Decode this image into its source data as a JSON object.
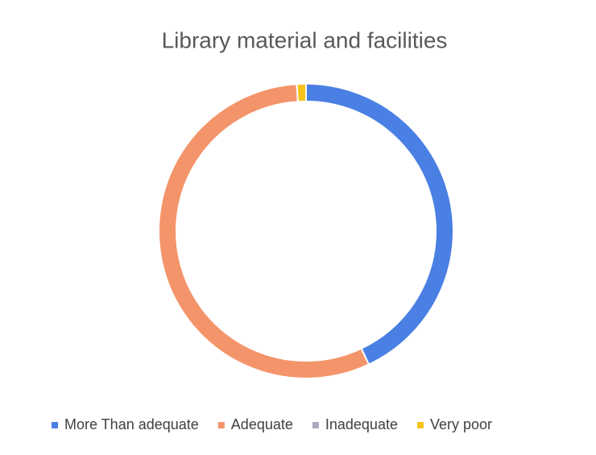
{
  "chart_data": {
    "type": "donut",
    "title": "Library material and facilities",
    "categories": [
      "More Than adequate",
      "Adequate",
      "Inadequate",
      "Very poor"
    ],
    "values": [
      43,
      56,
      0,
      1
    ],
    "colors": [
      "#4a7fe3",
      "#f4946a",
      "#a9a9bd",
      "#f5c31c"
    ],
    "legend": "bottom"
  }
}
